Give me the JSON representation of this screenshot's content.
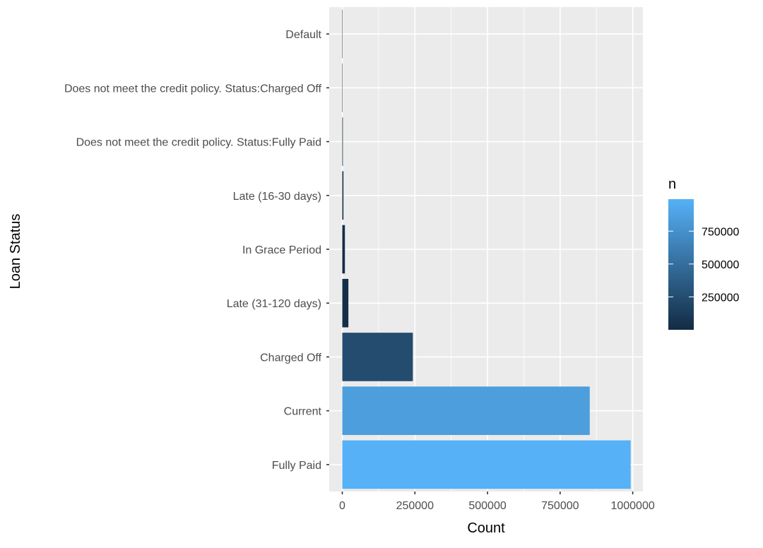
{
  "chart_data": {
    "type": "bar",
    "orientation": "horizontal",
    "categories": [
      "Default",
      "Does not meet the credit policy. Status:Charged Off",
      "Does not meet the credit policy. Status:Fully Paid",
      "Late (16-30 days)",
      "In Grace Period",
      "Late (31-120 days)",
      "Charged Off",
      "Current",
      "Fully Paid"
    ],
    "values": [
      50,
      800,
      2000,
      4000,
      9000,
      21000,
      243000,
      852000,
      993000
    ],
    "xlabel": "Count",
    "ylabel": "Loan Status",
    "xlim": [
      -45000,
      1035000
    ],
    "x_ticks": [
      0,
      250000,
      500000,
      750000,
      1000000
    ],
    "x_tick_labels": [
      "0",
      "250000",
      "500000",
      "750000",
      "1000000"
    ],
    "grid": true,
    "fill_scale": {
      "title": "n",
      "low_color": "#132B43",
      "high_color": "#56B1F7",
      "range": [
        50,
        993000
      ],
      "ticks": [
        250000,
        500000,
        750000
      ],
      "tick_labels": [
        "250000",
        "500000",
        "750000"
      ]
    },
    "legend_position": "right"
  }
}
